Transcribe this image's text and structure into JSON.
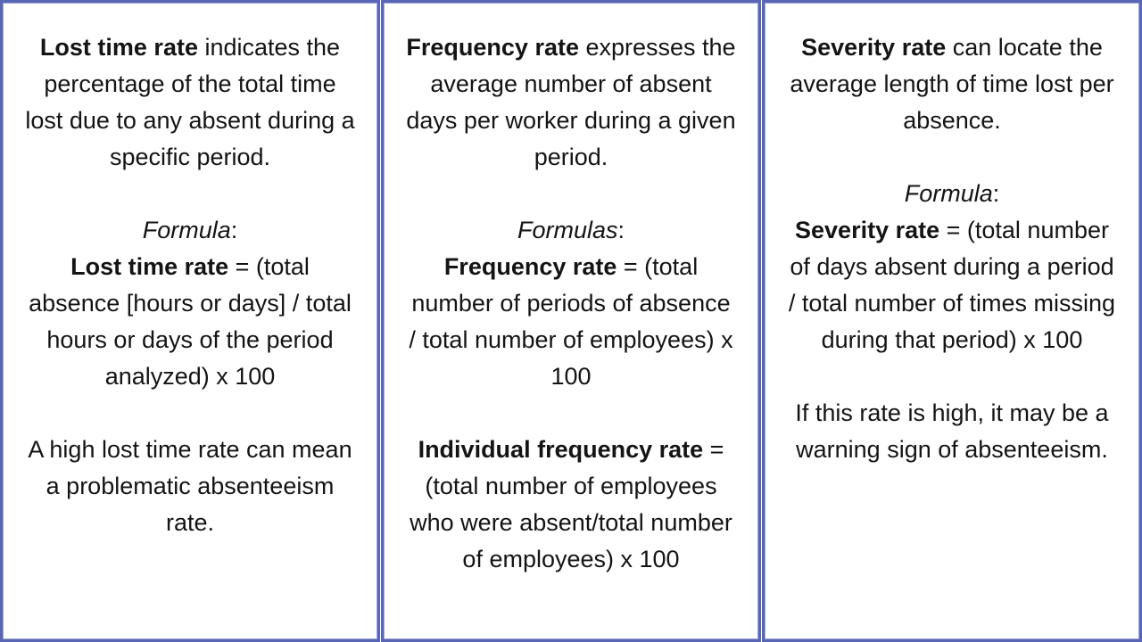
{
  "accent_color": "#5866b5",
  "text_color": "#141414",
  "cards": [
    {
      "id": "lost-time-rate",
      "intro_bold": "Lost time rate",
      "intro_rest": " indicates the percentage of the total time lost due to any absent during a specific period.",
      "formula_label": "Formula",
      "formula_colon": ":",
      "formula_bold": "Lost time rate",
      "formula_rest": " = (total absence [hours or days] / total hours or days of the period analyzed) x 100",
      "note": "A high lost time rate can mean a problematic absenteeism rate."
    },
    {
      "id": "frequency-rate",
      "intro_bold": "Frequency rate",
      "intro_rest": " expresses the average number of absent days per worker during a given period.",
      "formula_label": "Formulas",
      "formula_colon": ":",
      "formula_bold": "Frequency rate",
      "formula_rest": " = (total number of periods of absence / total number of employees) x 100",
      "formula2_bold": "Individual frequency rate",
      "formula2_rest": " = (total number of employees who were absent/total number of employees) x 100"
    },
    {
      "id": "severity-rate",
      "intro_bold": "Severity rate",
      "intro_rest": " can locate the average length of time lost per absence.",
      "formula_label": "Formula",
      "formula_colon": ":",
      "formula_bold": "Severity rate",
      "formula_rest": " = (total number of days absent during a period / total number of times missing during that period) x 100",
      "note": "If this rate is high, it may be a warning sign of absenteeism."
    }
  ]
}
